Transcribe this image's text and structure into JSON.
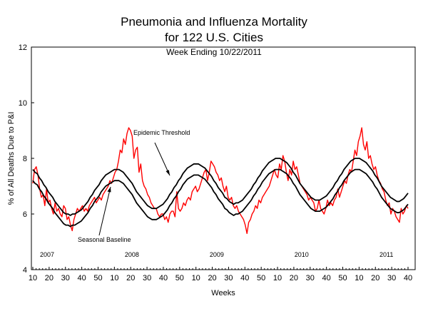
{
  "chart_data": {
    "type": "line",
    "title": "Pneumonia and Influenza Mortality",
    "subtitle": "for 122 U.S. Cities",
    "subtitle2": "Week Ending  10/22/2011",
    "xlabel": "Weeks",
    "ylabel": "% of All Deaths Due to P&I",
    "ylim": [
      4,
      12
    ],
    "yticks": [
      4,
      6,
      8,
      10,
      12
    ],
    "x_week_labels": [
      "10",
      "20",
      "30",
      "40",
      "50",
      "10",
      "20",
      "30",
      "40",
      "50",
      "10",
      "20",
      "30",
      "40",
      "50",
      "10",
      "20",
      "30",
      "40",
      "50",
      "10",
      "20",
      "30",
      "40"
    ],
    "year_labels": [
      "2007",
      "2008",
      "2009",
      "2010",
      "2011"
    ],
    "annotations": [
      {
        "text": "Epidemic Threshold"
      },
      {
        "text": "Seasonal Baseline"
      }
    ],
    "series": [
      {
        "key": "observed",
        "color": "#ff0000",
        "values": [
          7.1,
          7.6,
          7.7,
          7.4,
          6.9,
          6.6,
          6.7,
          6.3,
          6.9,
          6.4,
          6.5,
          6.2,
          6.0,
          6.4,
          6.1,
          6.2,
          6.0,
          5.9,
          6.3,
          6.2,
          5.8,
          5.9,
          5.6,
          5.4,
          5.8,
          6.0,
          6.2,
          6.1,
          6.2,
          6.3,
          6.1,
          6.2,
          6.1,
          6.3,
          6.4,
          6.5,
          6.6,
          6.4,
          6.5,
          6.6,
          6.5,
          6.7,
          6.8,
          6.9,
          7.0,
          7.2,
          7.1,
          7.3,
          7.5,
          7.6,
          7.9,
          8.3,
          8.2,
          8.7,
          8.5,
          8.9,
          9.1,
          9.0,
          8.8,
          8.0,
          8.3,
          8.4,
          7.5,
          7.8,
          7.2,
          7.0,
          6.9,
          6.7,
          6.6,
          6.4,
          6.3,
          6.2,
          6.2,
          6.0,
          5.9,
          6.0,
          6.0,
          5.8,
          5.9,
          5.7,
          6.0,
          6.1,
          6.1,
          5.9,
          6.8,
          6.2,
          6.1,
          6.2,
          6.4,
          6.3,
          6.5,
          6.6,
          6.5,
          6.8,
          6.9,
          7.0,
          6.8,
          6.9,
          7.1,
          7.3,
          7.5,
          7.6,
          7.2,
          7.5,
          7.9,
          7.8,
          7.7,
          7.5,
          7.4,
          7.2,
          7.3,
          7.0,
          6.8,
          7.0,
          6.6,
          6.5,
          6.6,
          6.3,
          6.2,
          6.3,
          6.1,
          6.0,
          5.9,
          5.8,
          5.6,
          5.3,
          5.7,
          5.8,
          6.0,
          6.1,
          6.3,
          6.2,
          6.5,
          6.4,
          6.6,
          6.7,
          6.8,
          6.9,
          7.0,
          7.2,
          7.4,
          7.6,
          7.4,
          7.3,
          7.8,
          7.6,
          8.1,
          7.9,
          7.5,
          7.2,
          7.6,
          7.4,
          7.9,
          7.6,
          7.7,
          7.4,
          7.1,
          7.0,
          6.9,
          6.8,
          6.7,
          6.5,
          6.6,
          6.5,
          6.4,
          6.1,
          6.2,
          6.5,
          6.2,
          6.1,
          6.0,
          6.2,
          6.5,
          6.3,
          6.4,
          6.3,
          6.5,
          6.6,
          6.9,
          6.6,
          6.8,
          7.0,
          7.2,
          7.1,
          7.4,
          7.6,
          7.5,
          7.9,
          8.3,
          8.1,
          8.6,
          8.8,
          9.1,
          8.5,
          8.3,
          8.6,
          8.0,
          8.1,
          7.8,
          7.6,
          7.7,
          7.4,
          7.2,
          7.1,
          6.9,
          6.8,
          6.5,
          6.3,
          6.4,
          6.0,
          6.2,
          6.1,
          5.9,
          5.8,
          5.7,
          6.2,
          6.0,
          6.1,
          6.3,
          6.2
        ]
      },
      {
        "key": "threshold",
        "color": "#000000",
        "values": [
          7.6,
          7.5,
          7.45,
          7.3,
          7.2,
          7.05,
          6.95,
          6.8,
          6.7,
          6.6,
          6.45,
          6.35,
          6.25,
          6.15,
          6.05,
          6.0,
          6.0,
          5.95,
          6.0,
          6.0,
          6.05,
          6.1,
          6.15,
          6.25,
          6.35,
          6.45,
          6.6,
          6.7,
          6.85,
          6.95,
          7.05,
          7.2,
          7.3,
          7.4,
          7.45,
          7.5,
          7.55,
          7.6,
          7.6,
          7.6,
          7.55,
          7.5,
          7.4,
          7.3,
          7.2,
          7.1,
          6.95,
          6.8,
          6.7,
          6.6,
          6.5,
          6.4,
          6.3,
          6.25,
          6.2,
          6.2,
          6.2,
          6.25,
          6.3,
          6.35,
          6.45,
          6.55,
          6.7,
          6.8,
          6.95,
          7.05,
          7.2,
          7.3,
          7.45,
          7.55,
          7.65,
          7.7,
          7.75,
          7.8,
          7.8,
          7.8,
          7.75,
          7.7,
          7.65,
          7.55,
          7.45,
          7.35,
          7.2,
          7.1,
          6.95,
          6.85,
          6.75,
          6.6,
          6.55,
          6.45,
          6.4,
          6.35,
          6.4,
          6.4,
          6.45,
          6.5,
          6.6,
          6.7,
          6.8,
          6.9,
          7.05,
          7.15,
          7.3,
          7.4,
          7.55,
          7.65,
          7.75,
          7.85,
          7.9,
          7.95,
          8.0,
          8.0,
          8.0,
          7.95,
          7.9,
          7.85,
          7.75,
          7.65,
          7.5,
          7.4,
          7.25,
          7.1,
          7.0,
          6.9,
          6.8,
          6.7,
          6.6,
          6.55,
          6.5,
          6.5,
          6.5,
          6.55,
          6.6,
          6.65,
          6.75,
          6.85,
          6.95,
          7.1,
          7.2,
          7.35,
          7.45,
          7.6,
          7.7,
          7.8,
          7.9,
          7.95,
          8.0,
          8.0,
          8.0,
          7.95,
          7.9,
          7.85,
          7.75,
          7.65,
          7.55,
          7.4,
          7.3,
          7.15,
          7.0,
          6.9,
          6.8,
          6.7,
          6.6,
          6.55,
          6.5,
          6.45,
          6.45,
          6.5,
          6.55,
          6.65,
          6.75
        ]
      },
      {
        "key": "baseline",
        "color": "#000000",
        "values": [
          7.2,
          7.1,
          7.05,
          6.9,
          6.8,
          6.65,
          6.55,
          6.4,
          6.3,
          6.2,
          6.05,
          5.95,
          5.85,
          5.75,
          5.65,
          5.6,
          5.6,
          5.55,
          5.6,
          5.6,
          5.65,
          5.7,
          5.75,
          5.85,
          5.95,
          6.05,
          6.2,
          6.3,
          6.45,
          6.55,
          6.65,
          6.8,
          6.9,
          7.0,
          7.05,
          7.1,
          7.15,
          7.2,
          7.2,
          7.2,
          7.15,
          7.1,
          7.0,
          6.9,
          6.8,
          6.7,
          6.55,
          6.4,
          6.3,
          6.2,
          6.1,
          6.0,
          5.9,
          5.85,
          5.8,
          5.8,
          5.8,
          5.85,
          5.9,
          5.95,
          6.05,
          6.15,
          6.3,
          6.4,
          6.55,
          6.65,
          6.8,
          6.9,
          7.05,
          7.15,
          7.25,
          7.3,
          7.35,
          7.4,
          7.4,
          7.4,
          7.35,
          7.3,
          7.25,
          7.15,
          7.05,
          6.95,
          6.8,
          6.7,
          6.55,
          6.45,
          6.35,
          6.2,
          6.15,
          6.05,
          6.0,
          5.95,
          6.0,
          6.0,
          6.05,
          6.1,
          6.2,
          6.3,
          6.4,
          6.5,
          6.65,
          6.75,
          6.9,
          7.0,
          7.15,
          7.25,
          7.35,
          7.45,
          7.5,
          7.55,
          7.6,
          7.6,
          7.6,
          7.55,
          7.5,
          7.45,
          7.35,
          7.25,
          7.1,
          7.0,
          6.85,
          6.7,
          6.6,
          6.5,
          6.4,
          6.3,
          6.2,
          6.15,
          6.1,
          6.1,
          6.1,
          6.15,
          6.2,
          6.25,
          6.35,
          6.45,
          6.55,
          6.7,
          6.8,
          6.95,
          7.05,
          7.2,
          7.3,
          7.4,
          7.5,
          7.55,
          7.6,
          7.6,
          7.6,
          7.55,
          7.5,
          7.45,
          7.35,
          7.25,
          7.15,
          7.0,
          6.9,
          6.75,
          6.6,
          6.5,
          6.4,
          6.3,
          6.2,
          6.15,
          6.1,
          6.05,
          6.05,
          6.1,
          6.15,
          6.25,
          6.35
        ]
      }
    ]
  }
}
